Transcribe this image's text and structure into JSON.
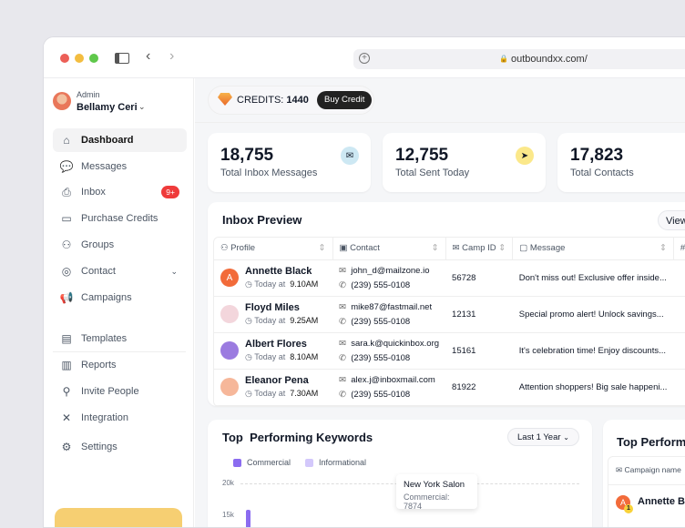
{
  "browser": {
    "url": "outboundxx.com/"
  },
  "user": {
    "role": "Admin",
    "name": "Bellamy Ceri"
  },
  "sidebar": {
    "items": [
      {
        "label": "Dashboard",
        "icon": "home-icon",
        "active": true
      },
      {
        "label": "Messages",
        "icon": "chat-icon"
      },
      {
        "label": "Inbox",
        "icon": "inbox-icon",
        "badge": "9+"
      },
      {
        "label": "Purchase Credits",
        "icon": "credit-card-icon"
      },
      {
        "label": "Groups",
        "icon": "groups-icon"
      },
      {
        "label": "Contact",
        "icon": "contact-icon"
      },
      {
        "label": "Campaigns",
        "icon": "megaphone-icon"
      },
      {
        "label": "Templates",
        "icon": "table-icon"
      },
      {
        "label": "Reports",
        "icon": "reports-icon"
      },
      {
        "label": "Invite People",
        "icon": "invite-icon"
      },
      {
        "label": "Integration",
        "icon": "tools-icon"
      },
      {
        "label": "Settings",
        "icon": "gear-icon"
      }
    ]
  },
  "credits": {
    "label": "CREDITS:",
    "value": "1440",
    "button": "Buy Credit"
  },
  "stats": [
    {
      "value": "18,755",
      "label": "Total Inbox Messages",
      "color": "#cde8f3"
    },
    {
      "value": "12,755",
      "label": "Total Sent Today",
      "color": "#fbe88a"
    },
    {
      "value": "17,823",
      "label": "Total Contacts"
    }
  ],
  "inbox": {
    "title": "Inbox Preview",
    "view_button": "View",
    "columns": [
      "Profile",
      "Contact",
      "Camp ID",
      "Message",
      "#"
    ],
    "today_label": "Today at",
    "rows": [
      {
        "name": "Annette Black",
        "time": "9.10AM",
        "email": "john_d@mailzone.io",
        "phone": "(239) 555-0108",
        "camp": "56728",
        "message": "Don't miss out! Exclusive offer inside...",
        "initial": "A"
      },
      {
        "name": "Floyd Miles",
        "time": "9.25AM",
        "email": "mike87@fastmail.net",
        "phone": "(239) 555-0108",
        "camp": "12131",
        "message": "Special promo alert! Unlock savings..."
      },
      {
        "name": "Albert Flores",
        "time": "8.10AM",
        "email": "sara.k@quickinbox.org",
        "phone": "(239) 555-0108",
        "camp": "15161",
        "message": "It's celebration time! Enjoy discounts..."
      },
      {
        "name": "Eleanor Pena",
        "time": "7.30AM",
        "email": "alex.j@inboxmail.com",
        "phone": "(239) 555-0108",
        "camp": "81922",
        "message": "Attention shoppers! Big sale happeni..."
      }
    ]
  },
  "keywords": {
    "title": "Top  Performing Keywords",
    "range": "Last 1 Year"
  },
  "chart_data": {
    "type": "bar",
    "legend": [
      "Commercial",
      "Informational"
    ],
    "colors": [
      "#8b6cf0",
      "#d3c8fb"
    ],
    "yticks": [
      "20k",
      "15k"
    ],
    "tooltip": {
      "title": "New York Salon",
      "text": "Commercial: 7874"
    }
  },
  "top_panel": {
    "title": "Top Performi",
    "column": "Campaign name",
    "first_row": {
      "name": "Annette Bla",
      "initial": "A",
      "rank": "1"
    }
  }
}
